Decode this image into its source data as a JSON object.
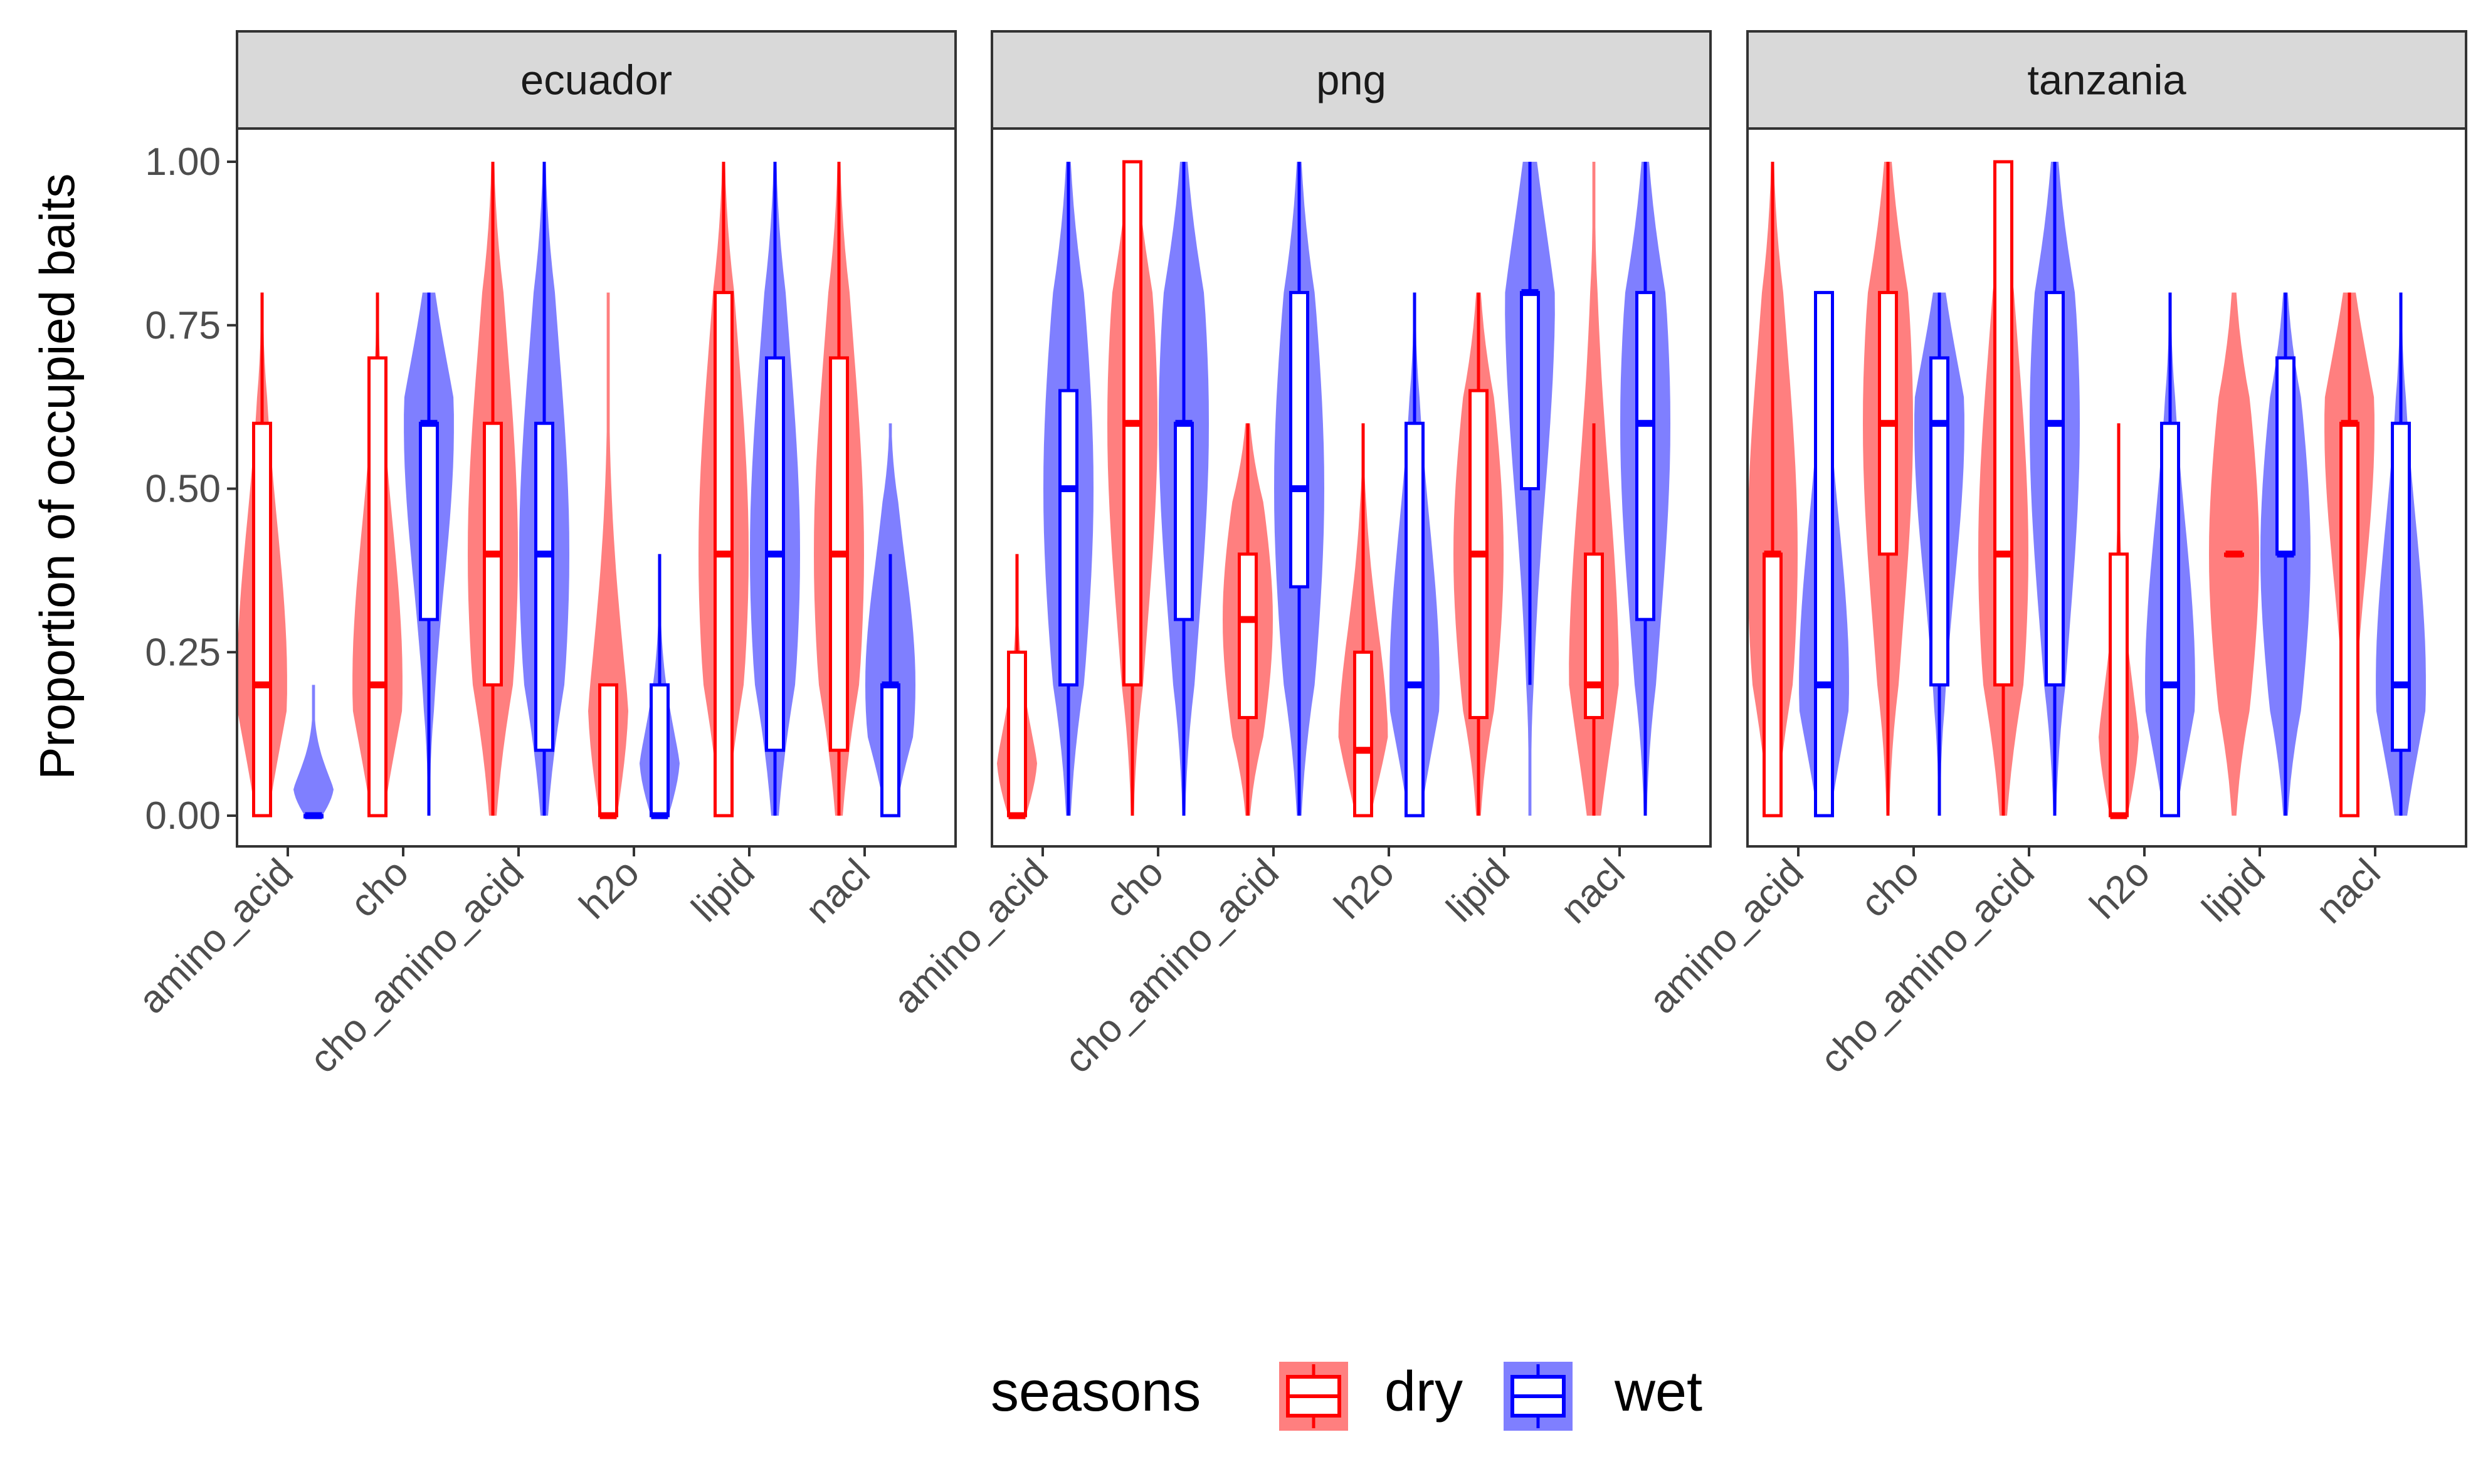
{
  "chart_data": {
    "type": "violin+boxplot",
    "ylabel": "Proportion of occupied baits",
    "xlabel": "",
    "ylim": [
      0,
      1.1
    ],
    "y_ticks": [
      "0.00",
      "0.25",
      "0.50",
      "0.75",
      "1.00"
    ],
    "y_tick_values": [
      0,
      0.25,
      0.5,
      0.75,
      1.0
    ],
    "categories": [
      "amino_acid",
      "cho",
      "cho_amino_acid",
      "h2o",
      "lipid",
      "nacl"
    ],
    "legend": {
      "title": "seasons",
      "position": "bottom",
      "items": [
        "dry",
        "wet"
      ]
    },
    "colors": {
      "dry": "#ff0000",
      "wet": "#0000ff",
      "strip_fill": "#d9d9d9"
    },
    "facets": [
      {
        "name": "ecuador",
        "dry": [
          {
            "min": 0,
            "q1": 0,
            "median": 0.2,
            "q3": 0.6,
            "max": 0.8,
            "vmin": 0,
            "vmax": 0.8
          },
          {
            "min": 0,
            "q1": 0,
            "median": 0.2,
            "q3": 0.7,
            "max": 0.8,
            "vmin": 0,
            "vmax": 0.8
          },
          {
            "min": 0,
            "q1": 0.2,
            "median": 0.4,
            "q3": 0.6,
            "max": 1.0,
            "vmin": 0,
            "vmax": 1.0
          },
          {
            "min": 0,
            "q1": 0,
            "median": 0,
            "q3": 0.2,
            "max": 0.2,
            "vmin": 0,
            "vmax": 0.8
          },
          {
            "min": 0,
            "q1": 0,
            "median": 0.4,
            "q3": 0.8,
            "max": 1.0,
            "vmin": 0,
            "vmax": 1.0
          },
          {
            "min": 0,
            "q1": 0.1,
            "median": 0.4,
            "q3": 0.7,
            "max": 1.0,
            "vmin": 0,
            "vmax": 1.0
          }
        ],
        "wet": [
          {
            "min": 0,
            "q1": 0,
            "median": 0,
            "q3": 0,
            "max": 0,
            "vmin": 0,
            "vmax": 0.2
          },
          {
            "min": 0,
            "q1": 0.3,
            "median": 0.6,
            "q3": 0.6,
            "max": 0.8,
            "vmin": 0,
            "vmax": 0.8
          },
          {
            "min": 0,
            "q1": 0.1,
            "median": 0.4,
            "q3": 0.6,
            "max": 1.0,
            "vmin": 0,
            "vmax": 1.0
          },
          {
            "min": 0,
            "q1": 0,
            "median": 0,
            "q3": 0.2,
            "max": 0.4,
            "vmin": 0,
            "vmax": 0.4
          },
          {
            "min": 0,
            "q1": 0.1,
            "median": 0.4,
            "q3": 0.7,
            "max": 1.0,
            "vmin": 0,
            "vmax": 1.0
          },
          {
            "min": 0,
            "q1": 0,
            "median": 0.2,
            "q3": 0.2,
            "max": 0.4,
            "vmin": 0,
            "vmax": 0.6
          }
        ]
      },
      {
        "name": "png",
        "dry": [
          {
            "min": 0,
            "q1": 0,
            "median": 0,
            "q3": 0.25,
            "max": 0.4,
            "vmin": 0,
            "vmax": 0.4
          },
          {
            "min": 0,
            "q1": 0.2,
            "median": 0.6,
            "q3": 1.0,
            "max": 1.0,
            "vmin": 0,
            "vmax": 1.0
          },
          {
            "min": 0,
            "q1": 0.15,
            "median": 0.3,
            "q3": 0.4,
            "max": 0.6,
            "vmin": 0,
            "vmax": 0.6
          },
          {
            "min": 0,
            "q1": 0,
            "median": 0.1,
            "q3": 0.25,
            "max": 0.6,
            "vmin": 0,
            "vmax": 0.6
          },
          {
            "min": 0,
            "q1": 0.15,
            "median": 0.4,
            "q3": 0.65,
            "max": 0.8,
            "vmin": 0,
            "vmax": 0.8
          },
          {
            "min": 0,
            "q1": 0.15,
            "median": 0.2,
            "q3": 0.4,
            "max": 0.6,
            "vmin": 0,
            "vmax": 1.0
          }
        ],
        "wet": [
          {
            "min": 0,
            "q1": 0.2,
            "median": 0.5,
            "q3": 0.65,
            "max": 1.0,
            "vmin": 0,
            "vmax": 1.0
          },
          {
            "min": 0,
            "q1": 0.3,
            "median": 0.6,
            "q3": 0.6,
            "max": 1.0,
            "vmin": 0,
            "vmax": 1.0
          },
          {
            "min": 0,
            "q1": 0.35,
            "median": 0.5,
            "q3": 0.8,
            "max": 1.0,
            "vmin": 0,
            "vmax": 1.0
          },
          {
            "min": 0,
            "q1": 0,
            "median": 0.2,
            "q3": 0.6,
            "max": 0.8,
            "vmin": 0,
            "vmax": 0.8
          },
          {
            "min": 0.2,
            "q1": 0.5,
            "median": 0.8,
            "q3": 0.8,
            "max": 1.0,
            "vmin": 0,
            "vmax": 1.0
          },
          {
            "min": 0,
            "q1": 0.3,
            "median": 0.6,
            "q3": 0.8,
            "max": 1.0,
            "vmin": 0,
            "vmax": 1.0
          }
        ]
      },
      {
        "name": "tanzania",
        "dry": [
          {
            "min": 0,
            "q1": 0,
            "median": 0.4,
            "q3": 0.4,
            "max": 1.0,
            "vmin": 0,
            "vmax": 1.0
          },
          {
            "min": 0,
            "q1": 0.4,
            "median": 0.6,
            "q3": 0.8,
            "max": 1.0,
            "vmin": 0,
            "vmax": 1.0
          },
          {
            "min": 0,
            "q1": 0.2,
            "median": 0.4,
            "q3": 1.0,
            "max": 1.0,
            "vmin": 0,
            "vmax": 1.0
          },
          {
            "min": 0,
            "q1": 0,
            "median": 0,
            "q3": 0.4,
            "max": 0.6,
            "vmin": 0,
            "vmax": 0.6
          },
          {
            "min": 0.4,
            "q1": 0.4,
            "median": 0.4,
            "q3": 0.4,
            "max": 0.4,
            "vmin": 0,
            "vmax": 0.8
          },
          {
            "min": 0,
            "q1": 0,
            "median": 0.6,
            "q3": 0.6,
            "max": 0.8,
            "vmin": 0,
            "vmax": 0.8
          }
        ],
        "wet": [
          {
            "min": 0,
            "q1": 0,
            "median": 0.2,
            "q3": 0.8,
            "max": 0.8,
            "vmin": 0,
            "vmax": 0.8
          },
          {
            "min": 0,
            "q1": 0.2,
            "median": 0.6,
            "q3": 0.7,
            "max": 0.8,
            "vmin": 0,
            "vmax": 0.8
          },
          {
            "min": 0,
            "q1": 0.2,
            "median": 0.6,
            "q3": 0.8,
            "max": 1.0,
            "vmin": 0,
            "vmax": 1.0
          },
          {
            "min": 0,
            "q1": 0,
            "median": 0.2,
            "q3": 0.6,
            "max": 0.8,
            "vmin": 0,
            "vmax": 0.8
          },
          {
            "min": 0,
            "q1": 0.4,
            "median": 0.4,
            "q3": 0.7,
            "max": 0.8,
            "vmin": 0,
            "vmax": 0.8
          },
          {
            "min": 0,
            "q1": 0.1,
            "median": 0.2,
            "q3": 0.6,
            "max": 0.8,
            "vmin": 0,
            "vmax": 0.8
          }
        ]
      }
    ]
  }
}
